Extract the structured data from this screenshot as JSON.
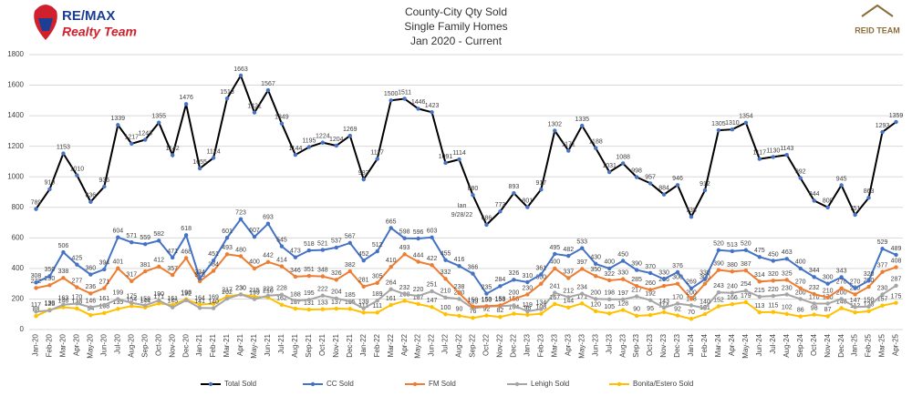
{
  "logos": {
    "left_main": "RE/MAX",
    "left_sub": "Realty Team",
    "right_main": "REID TEAM"
  },
  "chart_data": {
    "type": "line",
    "title": "County-City Qty Sold",
    "subtitle": "Single Family Homes",
    "subtitle2": "Jan 2020 - Current",
    "annotations": [
      {
        "text": "Ian",
        "index": 32
      },
      {
        "text": "9/28/22",
        "index": 32
      }
    ],
    "categories": [
      "Jan-20",
      "Feb-20",
      "Mar-20",
      "Apr-20",
      "May-20",
      "Jun-20",
      "Jul-20",
      "Aug-20",
      "Sep-20",
      "Oct-20",
      "Nov-20",
      "Dec-20",
      "Jan-21",
      "Feb-21",
      "Mar-21",
      "Apr-21",
      "May-21",
      "Jun-21",
      "Jul-21",
      "Aug-21",
      "Sep-21",
      "Oct-21",
      "Nov-21",
      "Dec-21",
      "Jan-22",
      "Feb-22",
      "Mar-22",
      "Apr-22",
      "May-22",
      "Jun-22",
      "Jul-22",
      "Aug-22",
      "Sep-22",
      "Oct-22",
      "Nov-22",
      "Dec-22",
      "Jan-23",
      "Feb-23",
      "Mar-23",
      "Apr-23",
      "May-23",
      "Jun-23",
      "Jul-23",
      "Aug-23",
      "Sep-23",
      "Oct-23",
      "Nov-23",
      "Dec-23",
      "Jan-24",
      "Feb-24",
      "Mar-24",
      "Apr-24",
      "May-24",
      "Jun-24",
      "Jul-24",
      "Aug-24",
      "Sep-24",
      "Oct-24",
      "Nov-24",
      "Dec-24",
      "Jan-25",
      "Feb-25",
      "Mar-25",
      "Apr-25"
    ],
    "series": [
      {
        "name": "Total Sold",
        "color": "#000000",
        "marker": "#4472c4",
        "values": [
          789,
          919,
          1153,
          1010,
          836,
          936,
          1339,
          1217,
          1243,
          1355,
          1142,
          1476,
          1055,
          1124,
          1513,
          1663,
          1421,
          1567,
          1349,
          1144,
          1195,
          1224,
          1204,
          1269,
          983,
          1117,
          1500,
          1511,
          1446,
          1423,
          1091,
          1114,
          880,
          686,
          773,
          893,
          801,
          917,
          1302,
          1171,
          1335,
          1188,
          1031,
          1088,
          998,
          957,
          884,
          946,
          738,
          912,
          1305,
          1310,
          1354,
          1117,
          1130,
          1143,
          992,
          844,
          800,
          945,
          751,
          863,
          1293,
          1359
        ]
      },
      {
        "name": "CC Sold",
        "color": "#4472c4",
        "values": [
          308,
          350,
          506,
          425,
          360,
          394,
          604,
          571,
          559,
          582,
          471,
          618,
          334,
          451,
          601,
          723,
          607,
          693,
          545,
          473,
          518,
          521,
          537,
          567,
          452,
          512,
          665,
          598,
          596,
          603,
          455,
          416,
          366,
          235,
          284,
          326,
          310,
          361,
          495,
          482,
          533,
          430,
          400,
          450,
          390,
          370,
          330,
          376,
          269,
          330,
          520,
          513,
          520,
          475,
          450,
          463,
          400,
          344,
          300,
          343,
          270,
          320,
          529,
          489
        ]
      },
      {
        "name": "FM Sold",
        "color": "#ed7d31",
        "values": [
          272,
          290,
          338,
          277,
          236,
          271,
          401,
          317,
          381,
          412,
          357,
          468,
          316,
          384,
          493,
          480,
          400,
          442,
          414,
          346,
          351,
          348,
          326,
          382,
          281,
          305,
          410,
          493,
          444,
          422,
          332,
          238,
          150,
          153,
          158,
          200,
          230,
          300,
          400,
          337,
          397,
          350,
          322,
          330,
          285,
          260,
          286,
          300,
          200,
          300,
          390,
          380,
          387,
          314,
          320,
          325,
          270,
          232,
          210,
          270,
          230,
          280,
          377,
          408
        ]
      },
      {
        "name": "Lehigh Sold",
        "color": "#a5a5a5",
        "values": [
          117,
          125,
          163,
          170,
          146,
          161,
          199,
          175,
          158,
          190,
          145,
          192,
          141,
          140,
          202,
          230,
          199,
          222,
          228,
          188,
          195,
          222,
          204,
          185,
          139,
          189,
          264,
          232,
          220,
          251,
          210,
          200,
          139,
          150,
          153,
          158,
          119,
          134,
          241,
          212,
          234,
          200,
          198,
          197,
          217,
          192,
          143,
          170,
          158,
          140,
          243,
          240,
          254,
          215,
          220,
          230,
          200,
          170,
          170,
          200,
          147,
          150,
          230,
          287
        ]
      },
      {
        "name": "Bonita/Estero Sold",
        "color": "#ffc000",
        "values": [
          88,
          130,
          146,
          138,
          94,
          108,
          135,
          154,
          144,
          171,
          161,
          198,
          164,
          169,
          217,
          230,
          215,
          210,
          162,
          137,
          131,
          133,
          137,
          135,
          111,
          111,
          161,
          188,
          167,
          147,
          100,
          90,
          76,
          92,
          82,
          104,
          96,
          103,
          167,
          144,
          171,
          120,
          105,
          128,
          90,
          95,
          114,
          92,
          70,
          101,
          152,
          166,
          179,
          113,
          115,
          102,
          86,
          98,
          87,
          140,
          112,
          120,
          157,
          175
        ]
      }
    ],
    "ylim": [
      0,
      1800
    ],
    "yticks": [
      0,
      200,
      400,
      600,
      800,
      1000,
      1200,
      1400,
      1600,
      1800
    ],
    "grid": true,
    "legend": "bottom"
  }
}
